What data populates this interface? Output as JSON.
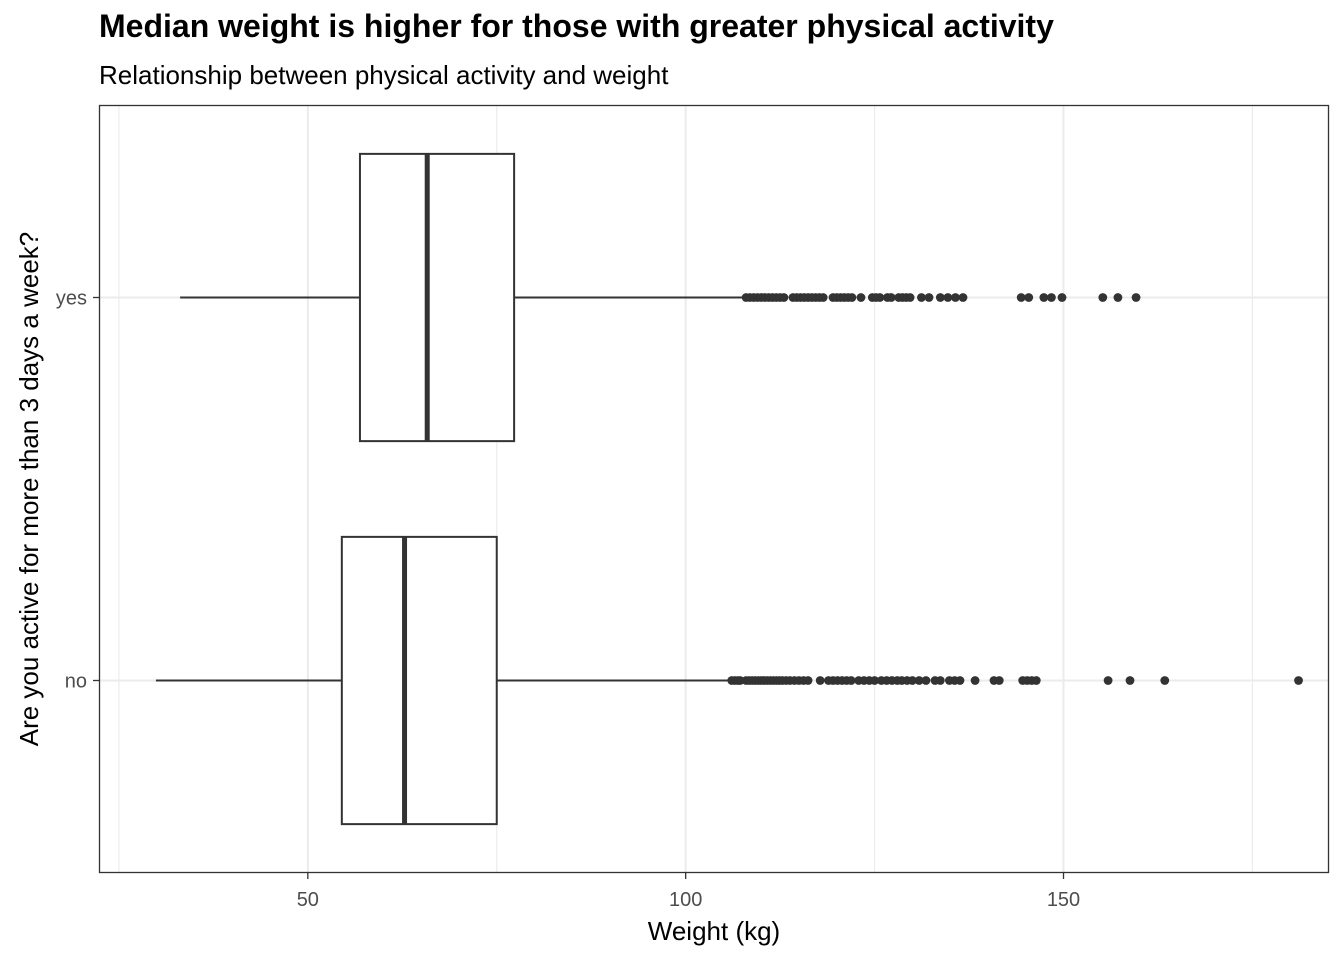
{
  "chart_data": {
    "type": "boxplot",
    "orientation": "horizontal",
    "title": "Median weight is higher for those with greater physical activity",
    "subtitle": "Relationship between physical activity and weight",
    "xlabel": "Weight (kg)",
    "ylabel": "Are you active for more than 3 days a week?",
    "xlim": [
      22.5,
      185
    ],
    "xticks": [
      50,
      100,
      150
    ],
    "xtick_labels": [
      "50",
      "100",
      "150"
    ],
    "categories": [
      "no",
      "yes"
    ],
    "grid": true,
    "legend": "none",
    "boxes": [
      {
        "category": "no",
        "whisker_low": 29.9,
        "q1": 54.5,
        "median": 62.8,
        "q3": 75.0,
        "whisker_high": 105.8,
        "outliers": [
          106.1,
          106.5,
          106.9,
          107.2,
          108.0,
          108.4,
          108.8,
          109.2,
          109.6,
          110.0,
          110.4,
          110.8,
          111.2,
          111.6,
          112.0,
          112.4,
          112.8,
          113.3,
          113.8,
          114.4,
          115.0,
          115.6,
          116.2,
          117.8,
          118.9,
          119.5,
          120.1,
          120.7,
          121.3,
          121.9,
          122.9,
          123.6,
          124.3,
          125.0,
          125.9,
          126.6,
          127.3,
          128.0,
          128.6,
          129.3,
          130.0,
          130.9,
          131.8,
          133.0,
          133.7,
          134.9,
          135.6,
          136.3,
          138.3,
          140.8,
          141.5,
          144.6,
          145.2,
          145.8,
          146.4,
          155.9,
          158.8,
          163.4,
          181.1
        ]
      },
      {
        "category": "yes",
        "whisker_low": 33.1,
        "q1": 56.9,
        "median": 65.8,
        "q3": 77.3,
        "whisker_high": 107.6,
        "outliers": [
          108.0,
          108.5,
          109.0,
          109.5,
          110.0,
          110.5,
          111.0,
          111.5,
          112.0,
          112.5,
          113.0,
          114.2,
          114.7,
          115.2,
          115.7,
          116.2,
          116.7,
          117.2,
          117.7,
          118.2,
          119.5,
          120.0,
          120.5,
          121.0,
          121.5,
          122.0,
          123.2,
          124.7,
          125.2,
          125.7,
          126.7,
          127.2,
          128.2,
          128.7,
          129.2,
          129.7,
          131.2,
          132.2,
          133.7,
          134.7,
          135.7,
          136.7,
          144.4,
          145.4,
          147.4,
          148.4,
          149.8,
          155.2,
          157.2,
          159.6
        ]
      }
    ],
    "colors": {
      "box_stroke": "#333333",
      "box_fill": "#ffffff",
      "point": "#333333",
      "grid": "#ebebeb",
      "panel_border": "#333333",
      "tick_label": "#4d4d4d"
    }
  }
}
